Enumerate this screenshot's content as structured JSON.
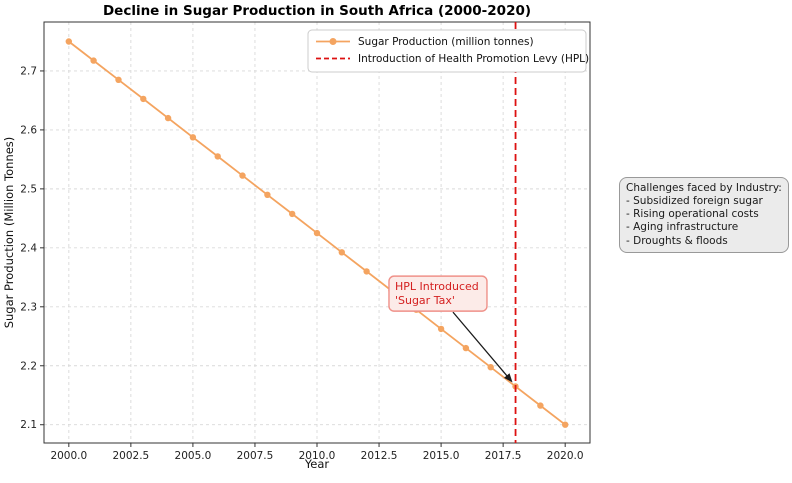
{
  "chart_data": {
    "type": "line",
    "title": "Decline in Sugar Production in South Africa (2000-2020)",
    "xlabel": "Year",
    "ylabel": "Sugar Production (Million Tonnes)",
    "xlim": [
      1999.0,
      2021.0
    ],
    "ylim": [
      2.069,
      2.783
    ],
    "grid": true,
    "legend_position": "upper center",
    "xticks": {
      "values": [
        2000.0,
        2002.5,
        2005.0,
        2007.5,
        2010.0,
        2012.5,
        2015.0,
        2017.5,
        2020.0
      ],
      "labels": [
        "2000.0",
        "2002.5",
        "2005.0",
        "2007.5",
        "2010.0",
        "2012.5",
        "2015.0",
        "2017.5",
        "2020.0"
      ]
    },
    "yticks": {
      "values": [
        2.1,
        2.2,
        2.3,
        2.4,
        2.5,
        2.6,
        2.7
      ],
      "labels": [
        "2.1",
        "2.2",
        "2.3",
        "2.4",
        "2.5",
        "2.6",
        "2.7"
      ]
    },
    "x": [
      2000,
      2001,
      2002,
      2003,
      2004,
      2005,
      2006,
      2007,
      2008,
      2009,
      2010,
      2011,
      2012,
      2013,
      2014,
      2015,
      2016,
      2017,
      2018,
      2019,
      2020
    ],
    "series": [
      {
        "name": "Sugar Production (million tonnes)",
        "color": "#f4a460",
        "marker": "circle",
        "values": [
          2.75,
          2.7175,
          2.685,
          2.6525,
          2.62,
          2.5875,
          2.555,
          2.5225,
          2.49,
          2.4575,
          2.425,
          2.3925,
          2.36,
          2.3275,
          2.295,
          2.2625,
          2.23,
          2.1975,
          2.165,
          2.1325,
          2.1
        ]
      }
    ],
    "vline": {
      "x": 2018,
      "color": "#dd1111",
      "style": "dashed",
      "label": "Introduction of Health Promotion Levy (HPL)"
    },
    "annotation": {
      "lines": [
        "HPL Introduced",
        "'Sugar Tax'"
      ],
      "target": {
        "x": 2018,
        "y": 2.165
      },
      "text_pos": {
        "x": 2012.9,
        "y": 2.352
      },
      "text_color": "#d42020",
      "box_fill": "#fcebe8",
      "box_edge": "#ef9189",
      "arrow_color": "#1a1a1a"
    }
  },
  "challenges": {
    "title": "Challenges faced by Industry:",
    "items": [
      "- Subsidized foreign sugar",
      "- Rising operational costs",
      "- Aging infrastructure",
      "- Droughts & floods"
    ]
  }
}
